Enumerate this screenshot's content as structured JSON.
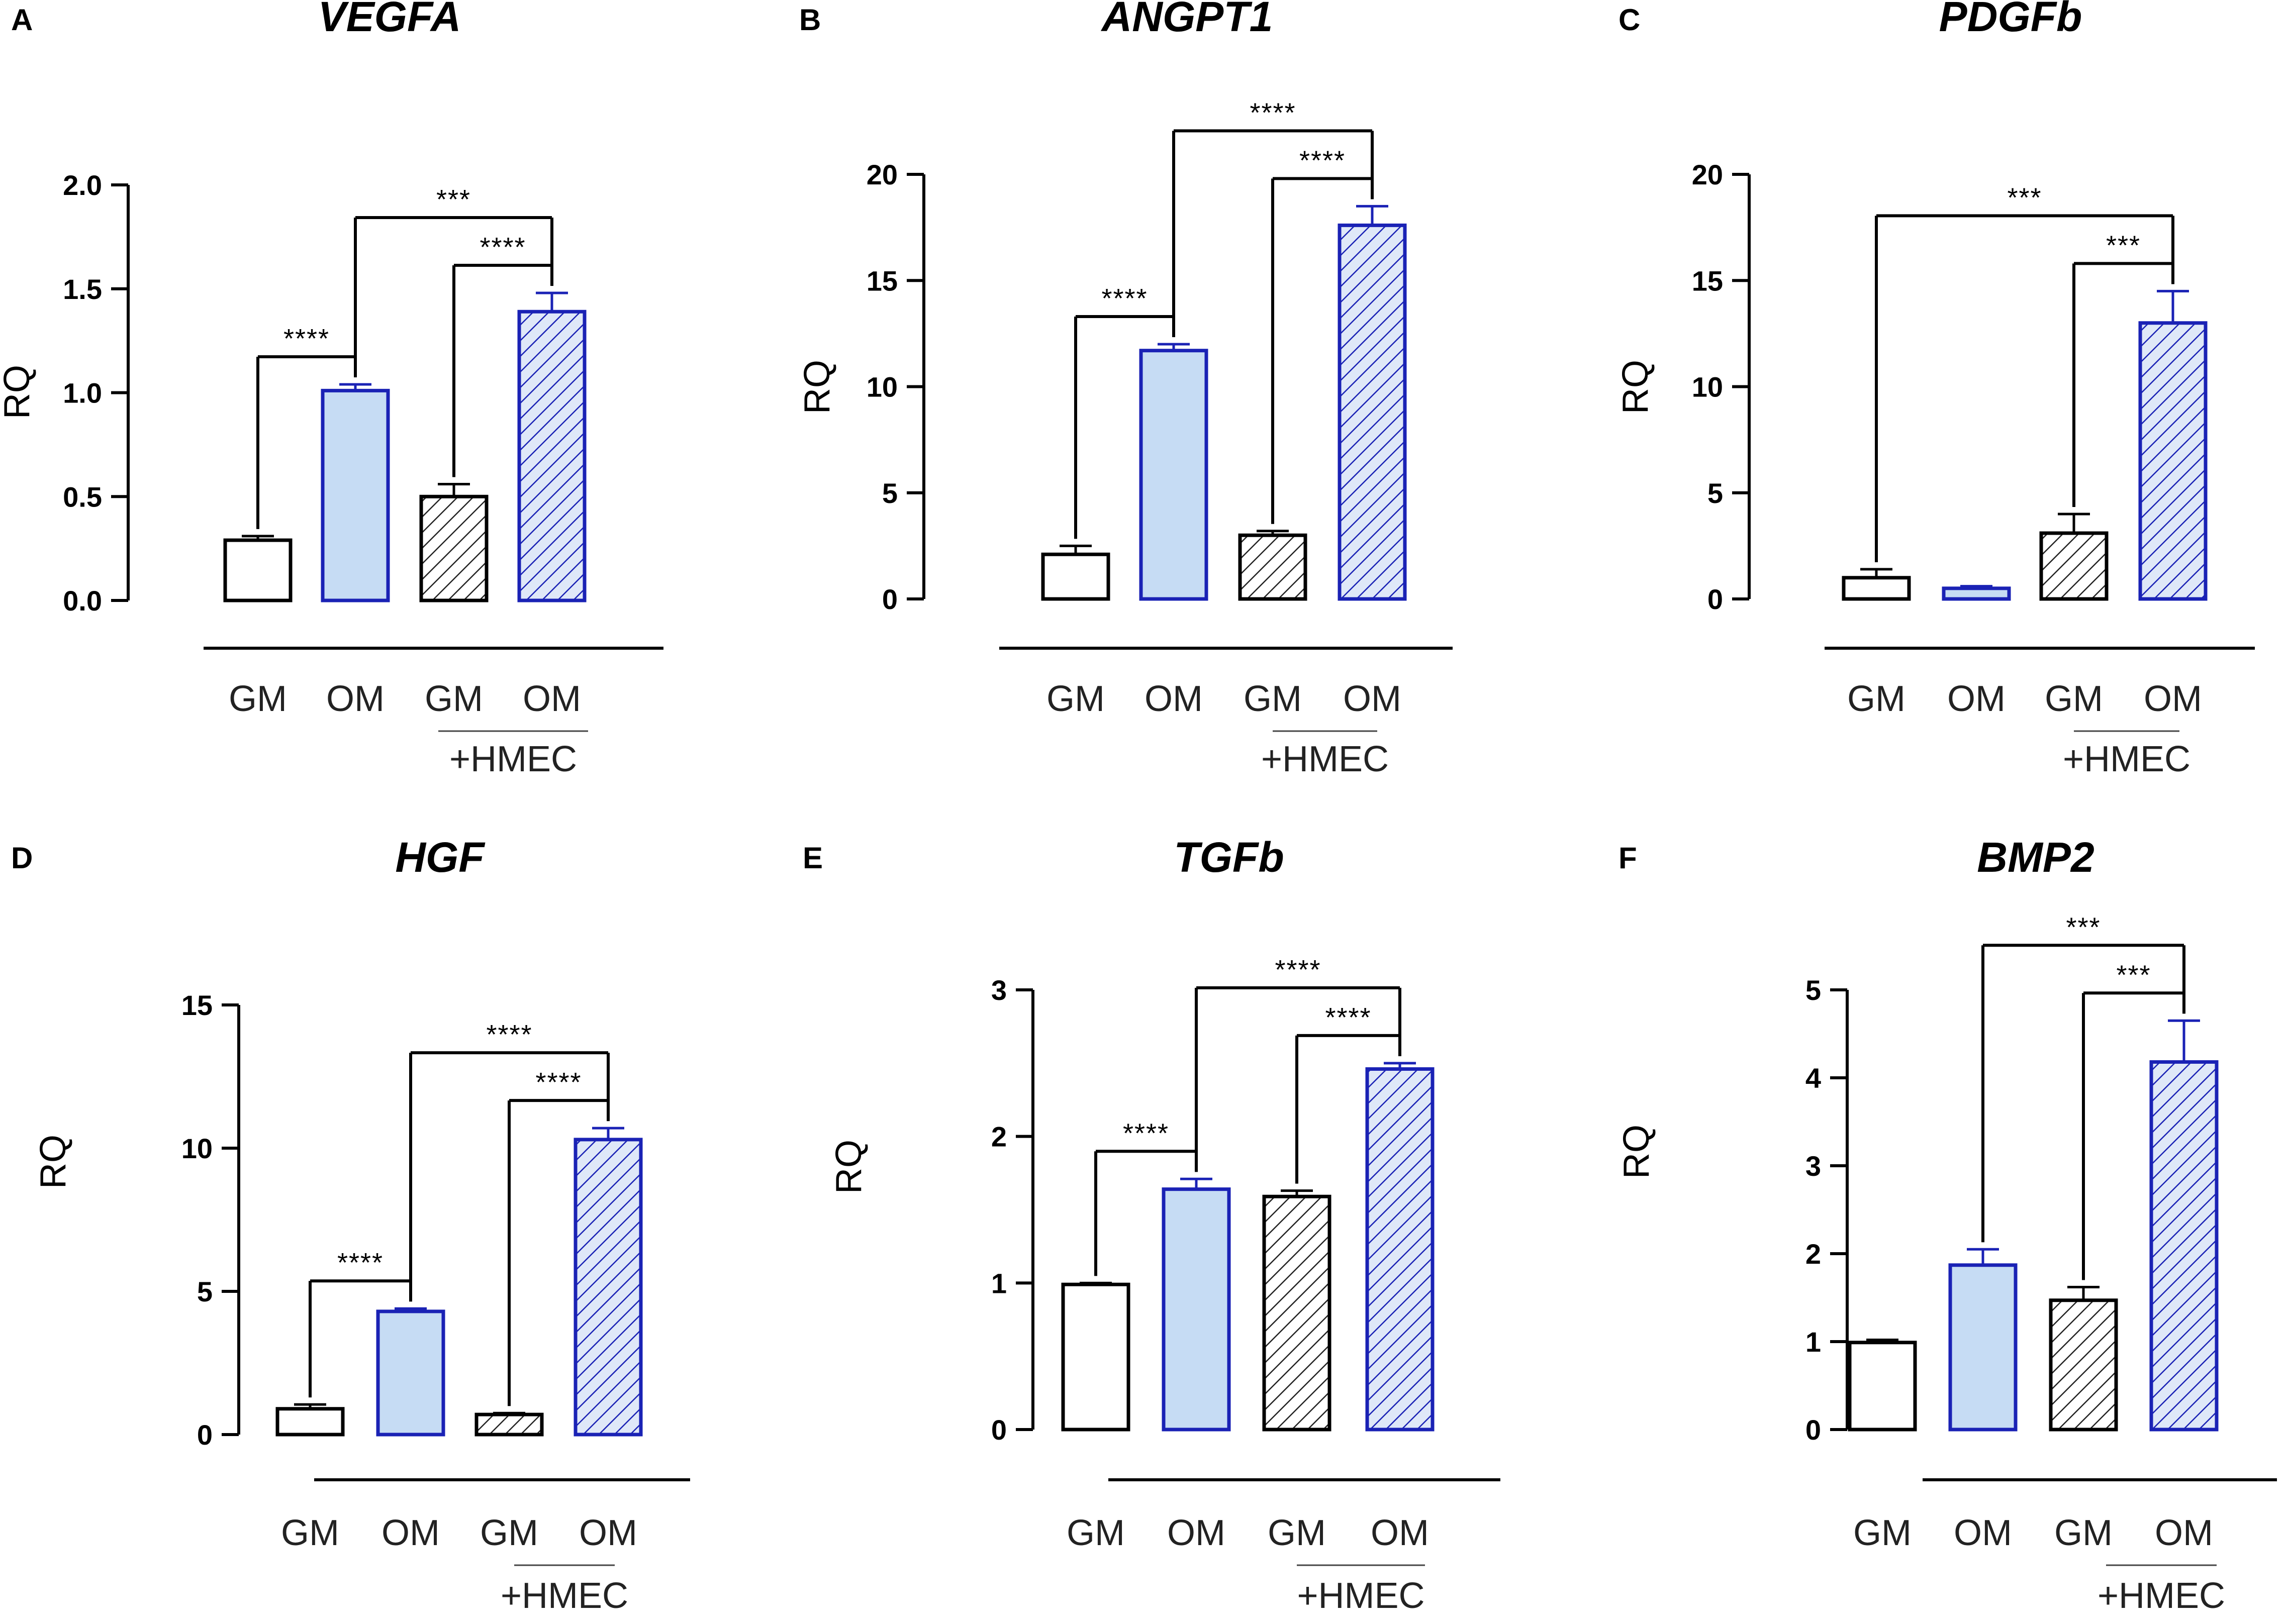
{
  "figure": {
    "styles": {
      "GM": {
        "fill": "#ffffff",
        "stroke": "#000000",
        "hatch": false
      },
      "OM": {
        "fill": "#c6dcf4",
        "stroke": "#1a22b5",
        "hatch": false
      },
      "GM+HMEC": {
        "fill": "#ffffff",
        "stroke": "#000000",
        "hatch": true,
        "hatch_color": "#222222"
      },
      "OM+HMEC": {
        "fill": "#dfe8f8",
        "stroke": "#1a22b5",
        "hatch": true,
        "hatch_color": "#1a22b5"
      }
    }
  },
  "chart_data": [
    {
      "panel": "A",
      "title": "VEGFA",
      "type": "bar",
      "ylabel": "RQ",
      "ylim": [
        0,
        2.0
      ],
      "yticks": [
        "0.0",
        "0.5",
        "1.0",
        "1.5",
        "2.0"
      ],
      "categories": [
        "GM",
        "OM",
        "GM",
        "OM"
      ],
      "group_label": "+HMEC",
      "series_styles": [
        "GM",
        "OM",
        "GM+HMEC",
        "OM+HMEC"
      ],
      "values": [
        0.29,
        1.01,
        0.5,
        1.39
      ],
      "errors": [
        0.02,
        0.03,
        0.06,
        0.09
      ],
      "significance": [
        {
          "from": 0,
          "to": 1,
          "label": "****",
          "level": 0
        },
        {
          "from": 2,
          "to": 3,
          "label": "****",
          "level": 0
        },
        {
          "from": 1,
          "to": 3,
          "label": "***",
          "level": 1
        }
      ]
    },
    {
      "panel": "B",
      "title": "ANGPT1",
      "type": "bar",
      "ylabel": "RQ",
      "ylim": [
        0,
        20
      ],
      "yticks": [
        "0",
        "5",
        "10",
        "15",
        "20"
      ],
      "categories": [
        "GM",
        "OM",
        "GM",
        "OM"
      ],
      "group_label": "+HMEC",
      "series_styles": [
        "GM",
        "OM",
        "GM+HMEC",
        "OM+HMEC"
      ],
      "values": [
        2.1,
        11.7,
        3.0,
        17.6
      ],
      "errors": [
        0.4,
        0.3,
        0.2,
        0.9
      ],
      "significance": [
        {
          "from": 0,
          "to": 1,
          "label": "****",
          "level": 0
        },
        {
          "from": 2,
          "to": 3,
          "label": "****",
          "level": 0
        },
        {
          "from": 1,
          "to": 3,
          "label": "****",
          "level": 1
        }
      ]
    },
    {
      "panel": "C",
      "title": "PDGFb",
      "type": "bar",
      "ylabel": "RQ",
      "ylim": [
        0,
        20
      ],
      "yticks": [
        "0",
        "5",
        "10",
        "15",
        "20"
      ],
      "categories": [
        "GM",
        "OM",
        "GM",
        "OM"
      ],
      "group_label": "+HMEC",
      "series_styles": [
        "GM",
        "OM",
        "GM+HMEC",
        "OM+HMEC"
      ],
      "values": [
        1.0,
        0.5,
        3.1,
        13.0
      ],
      "errors": [
        0.4,
        0.1,
        0.9,
        1.5
      ],
      "significance": [
        {
          "from": 2,
          "to": 3,
          "label": "***",
          "level": 0
        },
        {
          "from": 0,
          "to": 3,
          "label": "***",
          "level": 1
        }
      ]
    },
    {
      "panel": "D",
      "title": "HGF",
      "type": "bar",
      "ylabel": "RQ",
      "ylim": [
        0,
        15
      ],
      "yticks": [
        "0",
        "5",
        "10",
        "15"
      ],
      "categories": [
        "GM",
        "OM",
        "GM",
        "OM"
      ],
      "group_label": "+HMEC",
      "series_styles": [
        "GM",
        "OM",
        "GM+HMEC",
        "OM+HMEC"
      ],
      "values": [
        0.9,
        4.3,
        0.7,
        10.3
      ],
      "errors": [
        0.15,
        0.1,
        0.05,
        0.4
      ],
      "significance": [
        {
          "from": 0,
          "to": 1,
          "label": "****",
          "level": 0
        },
        {
          "from": 2,
          "to": 3,
          "label": "****",
          "level": 0
        },
        {
          "from": 1,
          "to": 3,
          "label": "****",
          "level": 1
        }
      ]
    },
    {
      "panel": "E",
      "title": "TGFb",
      "type": "bar",
      "ylabel": "RQ",
      "ylim": [
        0,
        3
      ],
      "yticks": [
        "0",
        "1",
        "2",
        "3"
      ],
      "categories": [
        "GM",
        "OM",
        "GM",
        "OM"
      ],
      "group_label": "+HMEC",
      "series_styles": [
        "GM",
        "OM",
        "GM+HMEC",
        "OM+HMEC"
      ],
      "values": [
        0.99,
        1.64,
        1.59,
        2.46
      ],
      "errors": [
        0.01,
        0.07,
        0.04,
        0.04
      ],
      "significance": [
        {
          "from": 0,
          "to": 1,
          "label": "****",
          "level": 0
        },
        {
          "from": 2,
          "to": 3,
          "label": "****",
          "level": 0
        },
        {
          "from": 1,
          "to": 3,
          "label": "****",
          "level": 1
        }
      ]
    },
    {
      "panel": "F",
      "title": "BMP2",
      "type": "bar",
      "ylabel": "RQ",
      "ylim": [
        0,
        5
      ],
      "yticks": [
        "0",
        "1",
        "2",
        "3",
        "4",
        "5"
      ],
      "categories": [
        "GM",
        "OM",
        "GM",
        "OM"
      ],
      "group_label": "+HMEC",
      "series_styles": [
        "GM",
        "OM",
        "GM+HMEC",
        "OM+HMEC"
      ],
      "values": [
        0.99,
        1.87,
        1.47,
        4.18
      ],
      "errors": [
        0.03,
        0.18,
        0.15,
        0.47
      ],
      "significance": [
        {
          "from": 2,
          "to": 3,
          "label": "***",
          "level": 0
        },
        {
          "from": 1,
          "to": 3,
          "label": "***",
          "level": 1
        }
      ]
    }
  ]
}
